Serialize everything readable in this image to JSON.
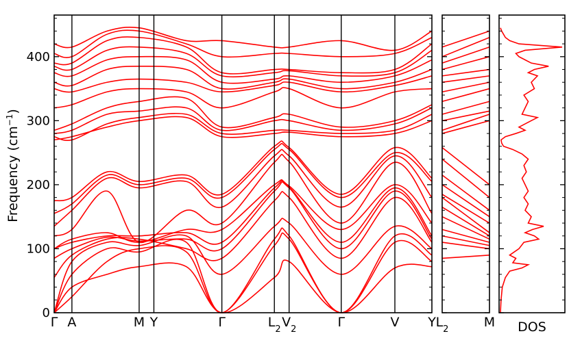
{
  "chart_data": [
    {
      "panel": "band-structure",
      "type": "line",
      "ylabel": "Frequency (cm",
      "ylabel_sup": "−1",
      "ylabel_close": ")",
      "ylim": [
        0,
        465
      ],
      "yticks": [
        0,
        100,
        200,
        300,
        400
      ],
      "kpoints": [
        {
          "label": "Γ",
          "x": 0.0
        },
        {
          "label": "A",
          "x": 0.047
        },
        {
          "label": "M",
          "x": 0.225
        },
        {
          "label": "Y",
          "x": 0.264
        },
        {
          "label": "Γ",
          "x": 0.444
        },
        {
          "label": "L",
          "sub": "2",
          "x": 0.583
        },
        {
          "label": "V",
          "sub": "2",
          "x": 0.622
        },
        {
          "label": "Γ",
          "x": 0.76
        },
        {
          "label": "V",
          "x": 0.902
        },
        {
          "label": "Y",
          "x": 1.0
        }
      ],
      "series_color": "#ff0000",
      "bands": [
        [
          0,
          40,
          60,
          72,
          72,
          0,
          55,
          80,
          0,
          70,
          72
        ],
        [
          0,
          25,
          80,
          100,
          95,
          0,
          105,
          115,
          0,
          110,
          80
        ],
        [
          0,
          60,
          100,
          95,
          110,
          0,
          115,
          120,
          0,
          120,
          90
        ],
        [
          0,
          80,
          110,
          105,
          120,
          60,
          135,
          140,
          60,
          135,
          100
        ],
        [
          55,
          90,
          115,
          115,
          100,
          85,
          175,
          180,
          85,
          180,
          110
        ],
        [
          85,
          100,
          118,
          112,
          115,
          100,
          190,
          195,
          100,
          190,
          115
        ],
        [
          100,
          110,
          120,
          120,
          125,
          110,
          195,
          196,
          110,
          195,
          120
        ],
        [
          100,
          115,
          125,
          110,
          130,
          130,
          200,
          198,
          130,
          200,
          140
        ],
        [
          120,
          130,
          190,
          110,
          160,
          140,
          235,
          236,
          140,
          235,
          155
        ],
        [
          135,
          160,
          210,
          195,
          205,
          165,
          245,
          245,
          165,
          245,
          180
        ],
        [
          155,
          170,
          215,
          200,
          210,
          180,
          255,
          255,
          180,
          250,
          205
        ],
        [
          175,
          180,
          220,
          205,
          215,
          185,
          260,
          258,
          185,
          258,
          210
        ],
        [
          270,
          275,
          290,
          300,
          305,
          275,
          280,
          282,
          275,
          280,
          300
        ],
        [
          275,
          270,
          295,
          305,
          310,
          280,
          285,
          285,
          280,
          285,
          310
        ],
        [
          280,
          285,
          310,
          315,
          320,
          285,
          300,
          300,
          285,
          295,
          320
        ],
        [
          285,
          295,
          320,
          330,
          335,
          290,
          305,
          310,
          290,
          300,
          325
        ],
        [
          320,
          325,
          345,
          350,
          345,
          320,
          345,
          350,
          320,
          345,
          350
        ],
        [
          350,
          345,
          360,
          365,
          360,
          345,
          355,
          360,
          345,
          355,
          370
        ],
        [
          360,
          355,
          380,
          385,
          380,
          350,
          360,
          365,
          350,
          360,
          380
        ],
        [
          375,
          370,
          395,
          400,
          395,
          360,
          365,
          370,
          360,
          370,
          395
        ],
        [
          385,
          380,
          410,
          415,
          405,
          370,
          375,
          378,
          370,
          375,
          410
        ],
        [
          390,
          390,
          425,
          430,
          415,
          375,
          380,
          380,
          375,
          380,
          420
        ],
        [
          405,
          400,
          435,
          440,
          420,
          400,
          405,
          405,
          400,
          405,
          430
        ],
        [
          420,
          415,
          440,
          445,
          425,
          425,
          415,
          415,
          425,
          410,
          440
        ]
      ],
      "bands_sampled_at_x": [
        0,
        0.047,
        0.14,
        0.225,
        0.35,
        0.444,
        0.583,
        0.622,
        0.76,
        0.902,
        1.0
      ]
    },
    {
      "panel": "band-structure-segment",
      "type": "line",
      "kpoints": [
        {
          "label": "L",
          "sub": "2",
          "x": 0.0
        },
        {
          "label": "M",
          "x": 1.0
        }
      ],
      "bands": [
        [
          85,
          90
        ],
        [
          110,
          100
        ],
        [
          120,
          105
        ],
        [
          130,
          110
        ],
        [
          150,
          115
        ],
        [
          165,
          120
        ],
        [
          180,
          125
        ],
        [
          185,
          140
        ],
        [
          200,
          150
        ],
        [
          215,
          160
        ],
        [
          240,
          180
        ],
        [
          258,
          200
        ],
        [
          280,
          300
        ],
        [
          285,
          310
        ],
        [
          300,
          315
        ],
        [
          310,
          330
        ],
        [
          330,
          350
        ],
        [
          345,
          360
        ],
        [
          360,
          370
        ],
        [
          370,
          380
        ],
        [
          380,
          400
        ],
        [
          390,
          415
        ],
        [
          400,
          430
        ],
        [
          415,
          440
        ]
      ],
      "bands_sampled_at_x": [
        0,
        1
      ]
    },
    {
      "panel": "dos",
      "type": "line",
      "xlabel": "DOS",
      "dos": [
        [
          0,
          0.0
        ],
        [
          20,
          0.01
        ],
        [
          40,
          0.03
        ],
        [
          55,
          0.08
        ],
        [
          65,
          0.15
        ],
        [
          70,
          0.35
        ],
        [
          75,
          0.45
        ],
        [
          78,
          0.2
        ],
        [
          85,
          0.25
        ],
        [
          90,
          0.15
        ],
        [
          100,
          0.3
        ],
        [
          110,
          0.38
        ],
        [
          115,
          0.62
        ],
        [
          120,
          0.55
        ],
        [
          125,
          0.4
        ],
        [
          130,
          0.52
        ],
        [
          135,
          0.7
        ],
        [
          140,
          0.45
        ],
        [
          150,
          0.5
        ],
        [
          160,
          0.4
        ],
        [
          170,
          0.45
        ],
        [
          180,
          0.38
        ],
        [
          190,
          0.45
        ],
        [
          200,
          0.4
        ],
        [
          210,
          0.35
        ],
        [
          220,
          0.42
        ],
        [
          230,
          0.38
        ],
        [
          240,
          0.45
        ],
        [
          248,
          0.35
        ],
        [
          255,
          0.2
        ],
        [
          260,
          0.05
        ],
        [
          265,
          0.02
        ],
        [
          270,
          0.01
        ],
        [
          275,
          0.08
        ],
        [
          280,
          0.25
        ],
        [
          285,
          0.4
        ],
        [
          290,
          0.3
        ],
        [
          300,
          0.5
        ],
        [
          305,
          0.6
        ],
        [
          310,
          0.35
        ],
        [
          320,
          0.4
        ],
        [
          330,
          0.45
        ],
        [
          340,
          0.38
        ],
        [
          350,
          0.55
        ],
        [
          360,
          0.5
        ],
        [
          370,
          0.6
        ],
        [
          375,
          0.45
        ],
        [
          380,
          0.55
        ],
        [
          385,
          0.78
        ],
        [
          390,
          0.5
        ],
        [
          395,
          0.4
        ],
        [
          400,
          0.3
        ],
        [
          405,
          0.25
        ],
        [
          410,
          0.4
        ],
        [
          415,
          1.0
        ],
        [
          420,
          0.3
        ],
        [
          425,
          0.15
        ],
        [
          430,
          0.08
        ],
        [
          435,
          0.05
        ],
        [
          440,
          0.02
        ],
        [
          445,
          0.0
        ]
      ]
    }
  ]
}
